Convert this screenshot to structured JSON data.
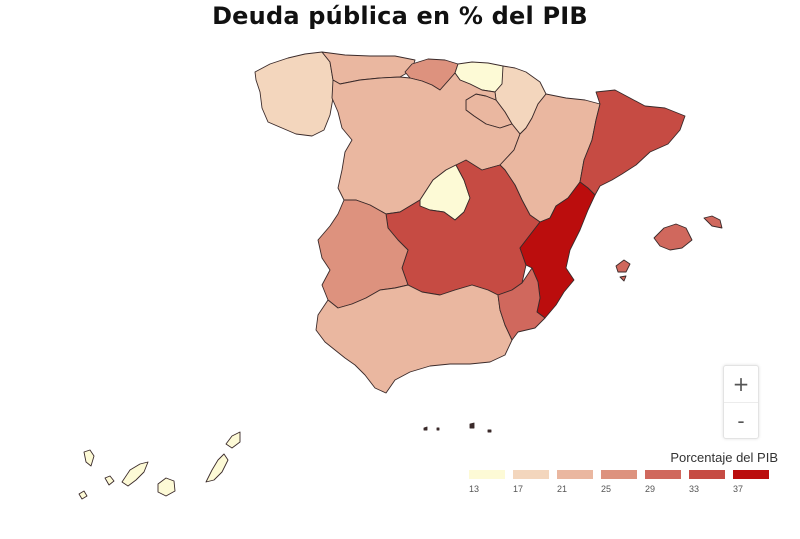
{
  "title": "Deuda pública en % del PIB",
  "zoom": {
    "in_label": "+",
    "out_label": "-"
  },
  "legend": {
    "title": "Porcentaje del PIB",
    "bins": [
      {
        "label": "13",
        "color": "#fdfad6"
      },
      {
        "label": "17",
        "color": "#f3d6bd"
      },
      {
        "label": "21",
        "color": "#eab7a0"
      },
      {
        "label": "25",
        "color": "#dd927e"
      },
      {
        "label": "29",
        "color": "#d0685d"
      },
      {
        "label": "33",
        "color": "#c64b43"
      },
      {
        "label": "37",
        "color": "#bb0d0d"
      }
    ]
  },
  "regions": [
    {
      "name": "Galicia",
      "color": "#f3d6bd"
    },
    {
      "name": "Asturias",
      "color": "#eab7a0"
    },
    {
      "name": "Cantabria",
      "color": "#dd927e"
    },
    {
      "name": "País Vasco",
      "color": "#fdfad6"
    },
    {
      "name": "Navarra",
      "color": "#f3d6bd"
    },
    {
      "name": "La Rioja",
      "color": "#eab7a0"
    },
    {
      "name": "Castilla y León",
      "color": "#eab7a0"
    },
    {
      "name": "Aragón",
      "color": "#eab7a0"
    },
    {
      "name": "Cataluña",
      "color": "#c64b43"
    },
    {
      "name": "Madrid",
      "color": "#fdfad6"
    },
    {
      "name": "Castilla-La Mancha",
      "color": "#c64b43"
    },
    {
      "name": "Comunidad Valenciana",
      "color": "#bb0d0d"
    },
    {
      "name": "Extremadura",
      "color": "#dd927e"
    },
    {
      "name": "Andalucía",
      "color": "#eab7a0"
    },
    {
      "name": "Murcia",
      "color": "#d0685d"
    },
    {
      "name": "Islas Baleares",
      "color": "#d0685d"
    },
    {
      "name": "Canarias",
      "color": "#fdfad6"
    },
    {
      "name": "Ceuta y Melilla",
      "color": "#3a2a2a"
    }
  ]
}
